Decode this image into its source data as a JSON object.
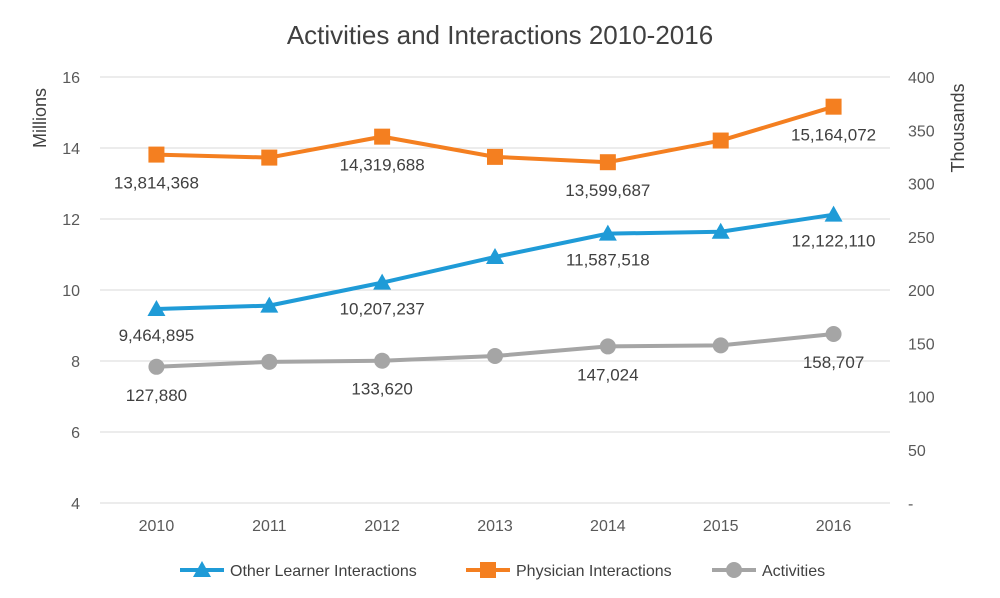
{
  "chart_data": {
    "type": "line",
    "title": "Activities and Interactions 2010-2016",
    "x": [
      "2010",
      "2011",
      "2012",
      "2013",
      "2014",
      "2015",
      "2016"
    ],
    "y_left": {
      "label": "Millions",
      "ylim": [
        4,
        16
      ],
      "ticks": [
        "4",
        "6",
        "8",
        "10",
        "12",
        "14",
        "16"
      ]
    },
    "y_right": {
      "label": "Thousands",
      "ylim": [
        0,
        400
      ],
      "ticks": [
        "-",
        "50",
        "100",
        "150",
        "200",
        "250",
        "300",
        "350",
        "400"
      ]
    },
    "grid": true,
    "legend_position": "bottom",
    "series": [
      {
        "name": "Other Learner Interactions",
        "axis": "left",
        "color": "#1f9bd7",
        "marker": "triangle",
        "values": [
          9.464895,
          9.56,
          10.207237,
          10.93,
          11.587518,
          11.64,
          12.12211
        ],
        "labels": [
          "9,464,895",
          "",
          "10,207,237",
          "",
          "11,587,518",
          "",
          "12,122,110"
        ]
      },
      {
        "name": "Physician Interactions",
        "axis": "left",
        "color": "#f47f20",
        "marker": "square",
        "values": [
          13.814368,
          13.73,
          14.319688,
          13.75,
          13.599687,
          14.21,
          15.164072
        ],
        "labels": [
          "13,814,368",
          "",
          "14,319,688",
          "",
          "13,599,687",
          "",
          "15,164,072"
        ]
      },
      {
        "name": "Activities",
        "axis": "right",
        "color": "#a5a5a5",
        "marker": "circle",
        "values": [
          127.88,
          132.5,
          133.62,
          138.0,
          147.024,
          148.0,
          158.707
        ],
        "labels": [
          "127,880",
          "",
          "133,620",
          "",
          "147,024",
          "",
          "158,707"
        ]
      }
    ]
  }
}
